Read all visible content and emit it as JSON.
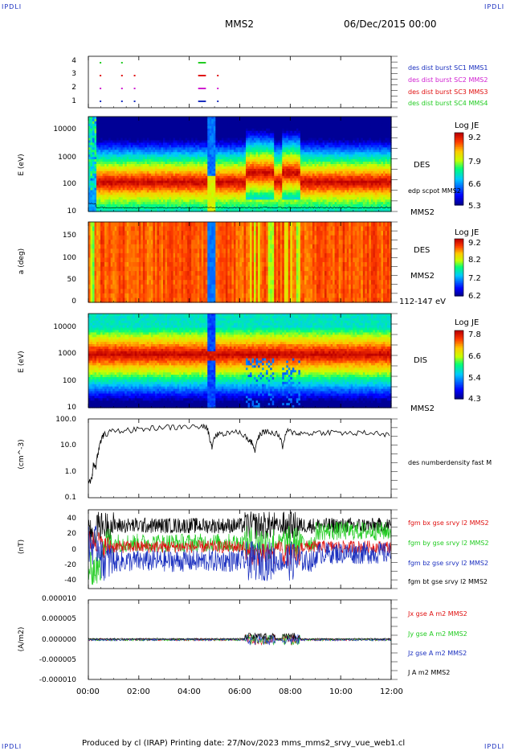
{
  "header": {
    "corner_tl": "IPDLI",
    "corner_tr": "IPDLI",
    "corner_bl": "IPDLI",
    "corner_br": "IPDLI",
    "spacecraft": "MMS2",
    "datetime": "06/Dec/2015 00:00"
  },
  "footer": {
    "text": "Produced by cl (IRAP)   Printing date: 27/Nov/2023   mms_mms2_srvy_vue_web1.cl"
  },
  "chart_data": [
    {
      "type": "scatter",
      "panel": "burst-availability",
      "ylim": [
        0.5,
        4.5
      ],
      "yticks": [
        "1",
        "2",
        "3",
        "4"
      ],
      "series": [
        {
          "name": "des dist burst SC1 MMS1",
          "color": "#1a2fbf"
        },
        {
          "name": "des dist burst SC2 MMS2",
          "color": "#d01fd0"
        },
        {
          "name": "des dist burst SC3 MMS3",
          "color": "#e01010"
        },
        {
          "name": "des dist burst SC4 MMS4",
          "color": "#22cc22"
        }
      ]
    },
    {
      "type": "heatmap",
      "panel": "des-energy",
      "ylabel": "E (eV)",
      "yscale": "log",
      "ylim": [
        10,
        30000
      ],
      "yticks": [
        "10000",
        "1000",
        "100",
        "10"
      ],
      "label": "DES",
      "overlay": "edp scpot MMS2",
      "sc": "MMS2",
      "colorbar": {
        "title": "Log JE",
        "ticks": [
          "9.2",
          "7.9",
          "6.6",
          "5.3"
        ]
      }
    },
    {
      "type": "heatmap",
      "panel": "des-pitch",
      "ylabel": "a (deg)",
      "ylim": [
        0,
        180
      ],
      "yticks": [
        "150",
        "100",
        "50",
        "0"
      ],
      "label": "DES",
      "sc": "MMS2",
      "energy_range": "112-147 eV",
      "colorbar": {
        "title": "Log JE",
        "ticks": [
          "9.2",
          "8.2",
          "7.2",
          "6.2"
        ]
      }
    },
    {
      "type": "heatmap",
      "panel": "dis-energy",
      "ylabel": "E (eV)",
      "yscale": "log",
      "ylim": [
        10,
        30000
      ],
      "yticks": [
        "10000",
        "1000",
        "100",
        "10"
      ],
      "label": "DIS",
      "sc": "MMS2",
      "colorbar": {
        "title": "Log JE",
        "ticks": [
          "7.8",
          "6.6",
          "5.4",
          "4.3"
        ]
      }
    },
    {
      "type": "line",
      "panel": "density",
      "ylabel": "(cm^-3)",
      "yscale": "log",
      "ylim": [
        0.1,
        100
      ],
      "yticks": [
        "100.0",
        "10.0",
        "1.0",
        "0.1"
      ],
      "series": [
        {
          "name": "des numberdensity fast M",
          "color": "#000000",
          "x": [
            0.0,
            0.15,
            0.2,
            0.3,
            0.4,
            0.5,
            0.6,
            1.0,
            1.5,
            2.0,
            2.5,
            3.0,
            3.5,
            4.0,
            4.5,
            4.7,
            4.8,
            4.9,
            5.0,
            5.2,
            5.6,
            6.0,
            6.3,
            6.5,
            6.6,
            6.8,
            7.0,
            7.2,
            7.5,
            7.7,
            7.9,
            8.2,
            8.5,
            9.0,
            9.5,
            10.0,
            10.5,
            11.0,
            11.5,
            12.0
          ],
          "y": [
            0.4,
            0.5,
            2.0,
            1.5,
            6.0,
            15,
            25,
            35,
            38,
            40,
            45,
            50,
            48,
            52,
            50,
            48,
            20,
            8,
            22,
            28,
            30,
            32,
            18,
            12,
            6,
            25,
            35,
            30,
            28,
            8,
            35,
            30,
            28,
            30,
            32,
            30,
            28,
            30,
            28,
            25
          ]
        }
      ]
    },
    {
      "type": "line",
      "panel": "magnetic-field",
      "ylabel": "(nT)",
      "ylim": [
        -50,
        50
      ],
      "yticks": [
        "40",
        "20",
        "0",
        "-20",
        "-40"
      ],
      "series": [
        {
          "name": "fgm bx gse srvy l2 MMS2",
          "color": "#e01010"
        },
        {
          "name": "fgm by gse srvy l2 MMS2",
          "color": "#22cc22"
        },
        {
          "name": "fgm bz gse srvy l2 MMS2",
          "color": "#1a2fbf"
        },
        {
          "name": "fgm bt gse srvy l2 MMS2",
          "color": "#000000"
        }
      ]
    },
    {
      "type": "line",
      "panel": "current-density",
      "ylabel": "(A/m2)",
      "ylim": [
        -1e-05,
        1e-05
      ],
      "yticks": [
        "0.000010",
        "0.000005",
        "0.000000",
        "-0.000005",
        "-0.000010"
      ],
      "series": [
        {
          "name": "Jx gse A m2 MMS2",
          "color": "#e01010"
        },
        {
          "name": "Jy gse A m2 MMS2",
          "color": "#22cc22"
        },
        {
          "name": "Jz gse A m2 MMS2",
          "color": "#1a2fbf"
        },
        {
          "name": "J A m2 MMS2",
          "color": "#000000"
        }
      ]
    }
  ],
  "time_axis": {
    "ticks": [
      "00:00",
      "02:00",
      "04:00",
      "06:00",
      "08:00",
      "10:00",
      "12:00"
    ]
  },
  "colors": {
    "corner": "#1a2fbf",
    "spectro_low": "#0000c0",
    "spectro_high": "#d00000"
  }
}
